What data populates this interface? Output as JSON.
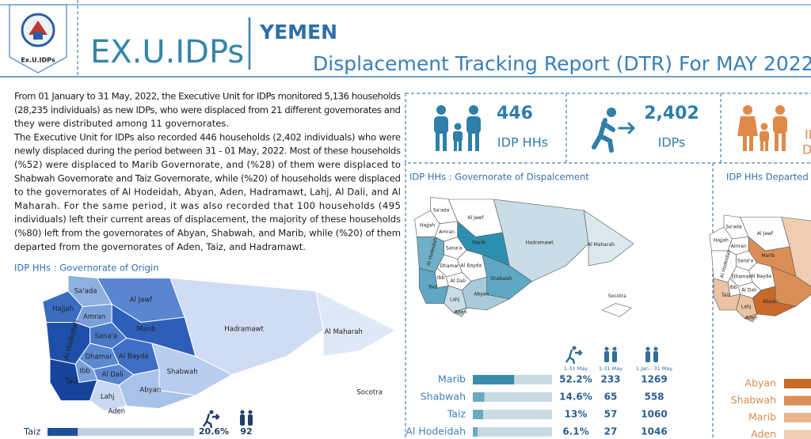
{
  "header": {
    "logo_caption": "Ex.U.IDPs",
    "brand": "EX.U.IDPs",
    "country": "YEMEN",
    "title": "Displacement Tracking Report (DTR) For MAY 2022"
  },
  "intro": [
    "From 01 January to 31 May, 2022, the Executive Unit for IDPs monitored 5,136 households",
    "(28,235 individuals) as new IDPs, who were displaced from 21 different governorates and",
    "they were distributed among 11 governorates.",
    "The Executive Unit for IDPs also recorded 446 households (2,402 individuals) who were",
    "newly displaced during the period between 31 - 01 May, 2022. Most of these households",
    "(%52) were displaced to Marib Governorate, and (%28) of them were displaced to",
    "Shabwah Governorate and Taiz Governorate, while (%20) of households were displaced",
    "to the governorates of Al Hodeidah, Abyan, Aden, Hadramawt, Lahj, Al Dali, and Al",
    "Maharah. For the same period, it was also recorded that 100 households (495",
    "individuals) left their current areas of displacement, the majority of these households",
    "(%80) left from the governorates of Abyan, Shabwah, and Marib, while (%20) of them",
    "departed from the governorates of Aden, Taiz, and Hadramawt."
  ],
  "stats": [
    {
      "value": "446",
      "label": "IDP HHs"
    },
    {
      "value": "2,402",
      "label": "IDPs"
    }
  ],
  "partial_box": [
    "IDP",
    "Departed"
  ],
  "maps": [
    {
      "title": "IDP HHs : Governorate of Origin",
      "labels": [
        "Sa'ada",
        "Al Jawf",
        "Hajjah",
        "Amran",
        "Marib",
        "Al Hodeidah",
        "Sana'a",
        "Dhamar",
        "Al Bayda",
        "Ibb",
        "Al Dali",
        "Taiz",
        "Lahj",
        "Abyan",
        "Aden",
        "Shabwah",
        "Hadramawt",
        "Al Maharah",
        "Socotra"
      ]
    },
    {
      "title": "IDP HHs : Governorate of Dispalcement",
      "labels": [
        "Sa'ada",
        "Al Jawf",
        "Hajjah",
        "Amran",
        "Marib",
        "Al Hodeidah",
        "Sana'a",
        "Dhamar",
        "Al Bayda",
        "Ibb",
        "Al Dali",
        "Taiz",
        "Lahj",
        "Abyan",
        "Aden",
        "Shabwah",
        "Hadramawt",
        "Al Maharah",
        "Socotra"
      ]
    },
    {
      "title": "IDP HHs Departed",
      "labels": [
        "Sa'ada",
        "Al Jawf",
        "Hajjah",
        "Amran",
        "Marib",
        "Al Hodeidah",
        "Sana'a",
        "Dhamar",
        "Al Bayda",
        "Ibb",
        "Al Dali",
        "Taiz",
        "Lahj",
        "Abyan",
        "Aden"
      ]
    }
  ],
  "origin_table": {
    "rows": [
      {
        "name": "Taiz",
        "percent": {
          "value": 20.6,
          "label": "20.6%"
        },
        "hh_period": 92
      }
    ]
  },
  "displacement_table": {
    "headers": [
      "1-31 May",
      "1-31 May",
      "1 Jan - 31 May"
    ],
    "rows": [
      {
        "name": "Marib",
        "percent": {
          "value": 52.2,
          "label": "52.2%"
        },
        "hh_period": 233,
        "hh_total": 1269
      },
      {
        "name": "Shabwah",
        "percent": {
          "value": 14.6,
          "label": "14.6%"
        },
        "hh_period": 65,
        "hh_total": 558
      },
      {
        "name": "Taiz",
        "percent": {
          "value": 13,
          "label": "13%"
        },
        "hh_period": 57,
        "hh_total": 1060
      },
      {
        "name": "Al Hodeidah",
        "percent": {
          "value": 6.1,
          "label": "6.1%"
        },
        "hh_period": 27,
        "hh_total": 1046
      }
    ]
  },
  "departed_table": {
    "rows": [
      "Abyan",
      "Shabwah",
      "Marib",
      "Aden"
    ]
  }
}
